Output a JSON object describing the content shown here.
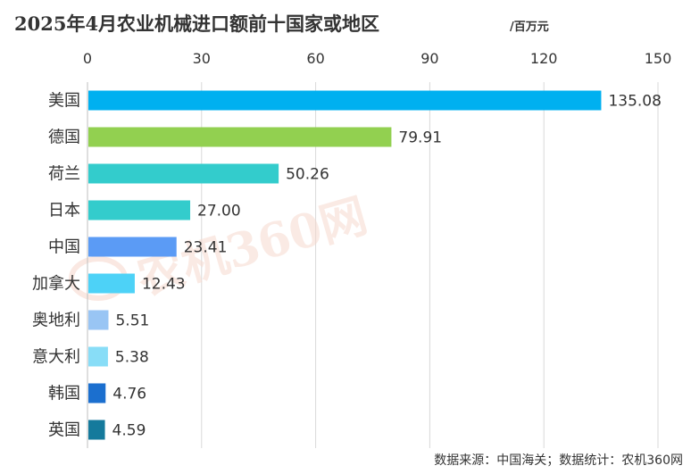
{
  "title": "2025年4月农业机械进口额前十国家或地区",
  "unit": "/百万元",
  "source": "数据来源：中国海关；数据统计：农机360网",
  "watermark": "农机360网",
  "chart_data": {
    "type": "bar",
    "orientation": "horizontal",
    "title": "2025年4月农业机械进口额前十国家或地区",
    "unit": "/百万元",
    "xlim": [
      0,
      150
    ],
    "ticks": [
      "0",
      "30",
      "60",
      "90",
      "120",
      "150"
    ],
    "tick_values": [
      0,
      30,
      60,
      90,
      120,
      150
    ],
    "grid": true,
    "categories": [
      "美国",
      "德国",
      "荷兰",
      "日本",
      "中国",
      "加拿大",
      "奥地利",
      "意大利",
      "韩国",
      "英国"
    ],
    "values": [
      135.08,
      79.91,
      50.26,
      27.0,
      23.41,
      12.43,
      5.51,
      5.38,
      4.76,
      4.59
    ],
    "labels": [
      "135.08",
      "79.91",
      "50.26",
      "27.00",
      "23.41",
      "12.43",
      "5.51",
      "5.38",
      "4.76",
      "4.59"
    ],
    "colors": [
      "#00b0f0",
      "#92d050",
      "#33cccc",
      "#33cccc",
      "#5b9bf5",
      "#4dd2f7",
      "#99c5f4",
      "#88ddf7",
      "#1b6fcf",
      "#157a9c"
    ]
  }
}
